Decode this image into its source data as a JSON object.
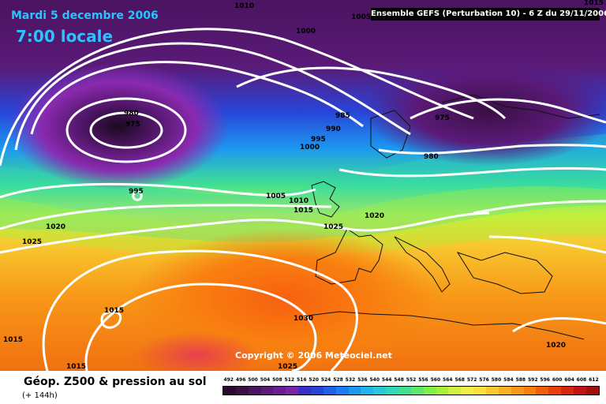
{
  "header": {
    "date": "Mardi 5 decembre 2006",
    "time": "7:00 locale",
    "run": "Ensemble GEFS (Perturbation 10)  -  6 Z du 29/11/2006"
  },
  "copyright": "Copyright © 2006 Meteociel.net",
  "footer": {
    "title": "Géop. Z500 & pression au sol",
    "subtitle": "(+ 144h)"
  },
  "isobars": [
    {
      "label": "1010"
    },
    {
      "label": "1005"
    },
    {
      "label": "1000"
    },
    {
      "label": "980"
    },
    {
      "label": "975"
    },
    {
      "label": "985"
    },
    {
      "label": "990"
    },
    {
      "label": "995"
    },
    {
      "label": "1000"
    },
    {
      "label": "975"
    },
    {
      "label": "980"
    },
    {
      "label": "995"
    },
    {
      "label": "1005"
    },
    {
      "label": "1010"
    },
    {
      "label": "1015"
    },
    {
      "label": "1020"
    },
    {
      "label": "1025"
    },
    {
      "label": "1020"
    },
    {
      "label": "1025"
    },
    {
      "label": "1015"
    },
    {
      "label": "1015"
    },
    {
      "label": "1030"
    },
    {
      "label": "1015"
    },
    {
      "label": "1025"
    },
    {
      "label": "1020"
    },
    {
      "label": "1015"
    }
  ],
  "legend": {
    "ticks": [
      "492",
      "496",
      "500",
      "504",
      "508",
      "512",
      "516",
      "520",
      "524",
      "528",
      "532",
      "536",
      "540",
      "544",
      "548",
      "552",
      "556",
      "560",
      "564",
      "568",
      "572",
      "576",
      "580",
      "584",
      "588",
      "592",
      "596",
      "600",
      "604",
      "608",
      "612"
    ],
    "colors": [
      "#2a0a2e",
      "#3a0f45",
      "#4a1460",
      "#5a1a78",
      "#6a1f90",
      "#7a25a8",
      "#3c2ec4",
      "#2844d8",
      "#1f60e8",
      "#1c7cf4",
      "#1c98f0",
      "#20b4e8",
      "#28c8d4",
      "#30d8b8",
      "#40e090",
      "#5ce868",
      "#80f048",
      "#a8f038",
      "#d0f040",
      "#f0f048",
      "#f8e040",
      "#f8c830",
      "#f8b024",
      "#f89818",
      "#f88010",
      "#f0600c",
      "#e8400c",
      "#d82410",
      "#c01414",
      "#a01010"
    ]
  },
  "colors": {
    "accent_text": "#29c4ff",
    "isobar": "#ffffff"
  }
}
